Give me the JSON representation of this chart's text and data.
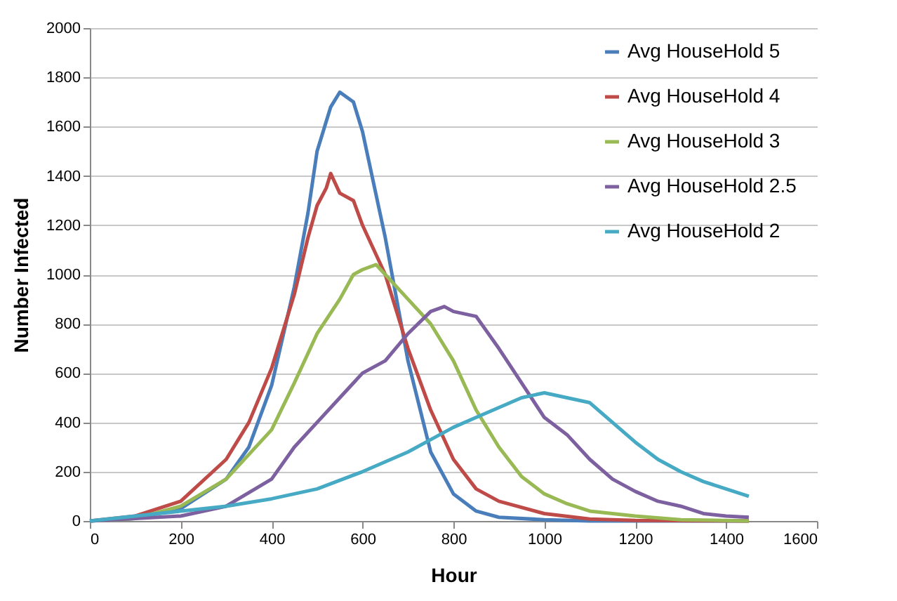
{
  "chart_data": {
    "type": "line",
    "xlabel": "Hour",
    "ylabel": "Number Infected",
    "xlim": [
      0,
      1600
    ],
    "xticks": [
      0,
      200,
      400,
      600,
      800,
      1000,
      1200,
      1400,
      1600
    ],
    "ylim": [
      0,
      2000
    ],
    "yticks": [
      0,
      200,
      400,
      600,
      800,
      1000,
      1200,
      1400,
      1600,
      1800,
      2000
    ],
    "grid": "y",
    "legend": "top right",
    "marker": "none",
    "line_style": "solid",
    "series": [
      {
        "name": "Avg HouseHold  5",
        "color": "#4a7ebb",
        "x": [
          0,
          100,
          200,
          300,
          350,
          400,
          450,
          480,
          500,
          530,
          550,
          580,
          600,
          650,
          700,
          750,
          800,
          850,
          900,
          1000,
          1100,
          1200,
          1450
        ],
        "values": [
          0,
          10,
          50,
          170,
          300,
          550,
          950,
          1250,
          1500,
          1680,
          1740,
          1700,
          1580,
          1150,
          650,
          280,
          110,
          40,
          15,
          5,
          0,
          0,
          0
        ]
      },
      {
        "name": "Avg HouseHold  4",
        "color": "#be4b48",
        "x": [
          0,
          100,
          200,
          300,
          350,
          400,
          450,
          480,
          500,
          520,
          530,
          550,
          580,
          600,
          650,
          700,
          750,
          800,
          850,
          900,
          1000,
          1100,
          1200,
          1450
        ],
        "values": [
          0,
          20,
          80,
          250,
          400,
          620,
          920,
          1150,
          1280,
          1350,
          1410,
          1330,
          1300,
          1200,
          1000,
          700,
          450,
          250,
          130,
          80,
          30,
          8,
          2,
          0
        ]
      },
      {
        "name": "Avg HouseHold  3",
        "color": "#98b954",
        "x": [
          0,
          100,
          200,
          300,
          400,
          450,
          500,
          550,
          580,
          600,
          630,
          650,
          700,
          750,
          800,
          850,
          900,
          950,
          1000,
          1050,
          1100,
          1150,
          1200,
          1300,
          1450
        ],
        "values": [
          0,
          10,
          60,
          170,
          370,
          560,
          760,
          900,
          1000,
          1020,
          1040,
          1000,
          900,
          800,
          650,
          450,
          300,
          180,
          110,
          70,
          40,
          30,
          20,
          5,
          0
        ]
      },
      {
        "name": "Avg HouseHold  2.5",
        "color": "#7d60a0",
        "x": [
          0,
          200,
          300,
          400,
          450,
          500,
          550,
          600,
          650,
          700,
          750,
          780,
          800,
          850,
          900,
          950,
          1000,
          1050,
          1100,
          1150,
          1200,
          1250,
          1300,
          1350,
          1400,
          1450
        ],
        "values": [
          0,
          20,
          60,
          170,
          300,
          400,
          500,
          600,
          650,
          760,
          850,
          870,
          850,
          830,
          700,
          560,
          420,
          350,
          250,
          170,
          120,
          80,
          60,
          30,
          20,
          15
        ]
      },
      {
        "name": "Avg HouseHold  2",
        "color": "#46aac5",
        "x": [
          0,
          200,
          300,
          400,
          500,
          600,
          700,
          750,
          800,
          850,
          900,
          950,
          1000,
          1050,
          1100,
          1150,
          1200,
          1250,
          1300,
          1350,
          1400,
          1450
        ],
        "values": [
          0,
          40,
          60,
          90,
          130,
          200,
          280,
          330,
          380,
          420,
          460,
          500,
          520,
          500,
          480,
          400,
          320,
          250,
          200,
          160,
          130,
          100
        ]
      }
    ]
  }
}
